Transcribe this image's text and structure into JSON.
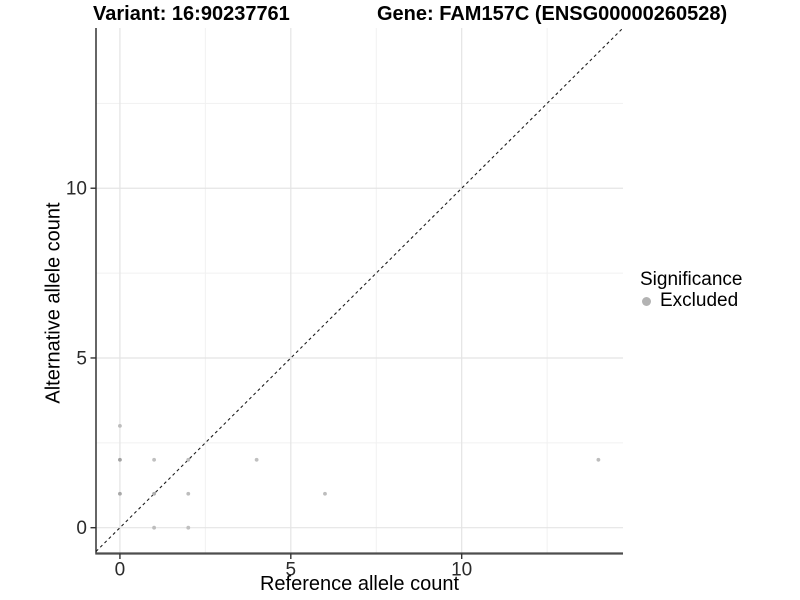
{
  "chart_data": {
    "type": "scatter",
    "title_left": "Variant: 16:90237761",
    "title_right": "Gene: FAM157C (ENSG00000260528)",
    "xlabel": "Reference allele count",
    "ylabel": "Alternative allele count",
    "xlim": [
      -0.7,
      14.72
    ],
    "ylim": [
      -0.76,
      14.72
    ],
    "x_ticks": [
      0,
      5,
      10
    ],
    "y_ticks": [
      0,
      5,
      10
    ],
    "x_minor_ticks": [
      2.5,
      7.5,
      12.5
    ],
    "y_minor_ticks": [
      2.5,
      7.5,
      12.5
    ],
    "grid": "major_and_minor",
    "identity_line": {
      "style": "dashed",
      "slope": 1,
      "intercept": 0
    },
    "series": [
      {
        "name": "Excluded",
        "color": "#b9b9b9",
        "points": [
          {
            "x": 0,
            "y": 1,
            "shade": "#a8a8a8"
          },
          {
            "x": 0,
            "y": 2,
            "shade": "#a3a3a3"
          },
          {
            "x": 0,
            "y": 3,
            "shade": "#bdbdbd"
          },
          {
            "x": 1,
            "y": 0,
            "shade": "#bdbdbd"
          },
          {
            "x": 1,
            "y": 1,
            "shade": "#adadad"
          },
          {
            "x": 1,
            "y": 2,
            "shade": "#c0c0c0"
          },
          {
            "x": 2,
            "y": 0,
            "shade": "#c0c0c0"
          },
          {
            "x": 2,
            "y": 1,
            "shade": "#bdbdbd"
          },
          {
            "x": 2,
            "y": 2,
            "shade": "#bdbdbd"
          },
          {
            "x": 4,
            "y": 2,
            "shade": "#c0c0c0"
          },
          {
            "x": 6,
            "y": 1,
            "shade": "#bdbdbd"
          },
          {
            "x": 14,
            "y": 2,
            "shade": "#bdbdbd"
          }
        ]
      }
    ],
    "legend": {
      "title": "Significance",
      "position": "right",
      "items": [
        {
          "label": "Excluded",
          "color": "#b3b3b3",
          "marker": "circle"
        }
      ]
    },
    "colors": {
      "background": "#ffffff",
      "grid_major": "#e4e4e4",
      "grid_minor": "#f1f1f1",
      "axis_line_left": "#141414",
      "axis_line_bottom": "#4d4d4d",
      "tick_mark": "#333333",
      "tick_label": "#2b2b2b",
      "identity_line": "#1f1f1f"
    }
  }
}
